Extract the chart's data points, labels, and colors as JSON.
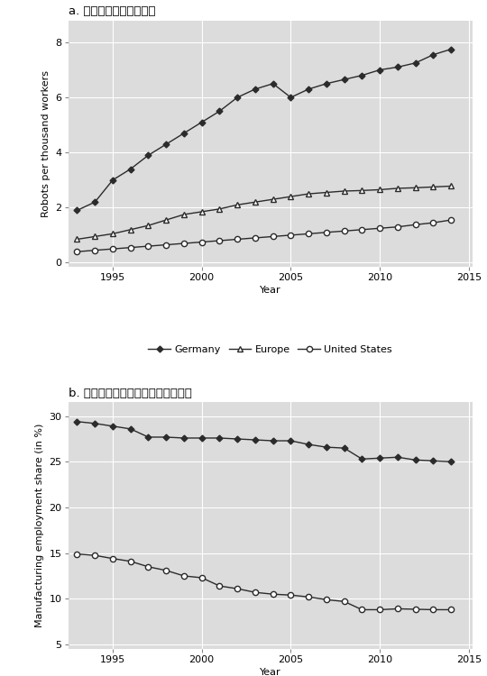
{
  "panel_a_title": "a. 産業用ロボットの台数",
  "panel_b_title": "b. 雇用全体に占める製造業のシェア",
  "xlabel": "Year",
  "panel_a_ylabel": "Robots per thousand workers",
  "panel_b_ylabel": "Manufacturing employment share (in %)",
  "bg_color": "#DCDCDC",
  "line_color": "#2b2b2b",
  "years_a": [
    1993,
    1994,
    1995,
    1996,
    1997,
    1998,
    1999,
    2000,
    2001,
    2002,
    2003,
    2004,
    2005,
    2006,
    2007,
    2008,
    2009,
    2010,
    2011,
    2012,
    2013,
    2014
  ],
  "germany_robots": [
    1.9,
    2.2,
    3.0,
    3.4,
    3.9,
    4.3,
    4.7,
    5.1,
    5.5,
    6.0,
    6.3,
    6.5,
    6.0,
    6.3,
    6.5,
    6.65,
    6.8,
    7.0,
    7.1,
    7.25,
    7.55,
    7.75
  ],
  "europe_robots": [
    0.85,
    0.95,
    1.05,
    1.2,
    1.35,
    1.55,
    1.75,
    1.85,
    1.95,
    2.1,
    2.2,
    2.3,
    2.4,
    2.5,
    2.55,
    2.6,
    2.62,
    2.65,
    2.7,
    2.72,
    2.75,
    2.78
  ],
  "us_robots": [
    0.4,
    0.45,
    0.5,
    0.55,
    0.6,
    0.65,
    0.7,
    0.75,
    0.8,
    0.85,
    0.9,
    0.95,
    1.0,
    1.05,
    1.1,
    1.15,
    1.2,
    1.25,
    1.3,
    1.38,
    1.45,
    1.55
  ],
  "years_b": [
    1993,
    1994,
    1995,
    1996,
    1997,
    1998,
    1999,
    2000,
    2001,
    2002,
    2003,
    2004,
    2005,
    2006,
    2007,
    2008,
    2009,
    2010,
    2011,
    2012,
    2013,
    2014
  ],
  "germany_mfg": [
    29.4,
    29.2,
    28.9,
    28.6,
    27.7,
    27.7,
    27.6,
    27.6,
    27.6,
    27.5,
    27.4,
    27.3,
    27.3,
    26.9,
    26.6,
    26.5,
    25.3,
    25.4,
    25.5,
    25.2,
    25.1,
    25.0
  ],
  "us_mfg": [
    14.9,
    14.75,
    14.4,
    14.1,
    13.5,
    13.1,
    12.5,
    12.3,
    11.4,
    11.1,
    10.7,
    10.5,
    10.4,
    10.2,
    9.9,
    9.7,
    8.8,
    8.8,
    8.9,
    8.85,
    8.8,
    8.8
  ],
  "xticks_a": [
    1995,
    2000,
    2005,
    2010,
    2015
  ],
  "yticks_a": [
    0,
    2,
    4,
    6,
    8
  ],
  "xlim_a": [
    1992.5,
    2015.2
  ],
  "ylim_a": [
    -0.15,
    8.8
  ],
  "xticks_b": [
    1995,
    2000,
    2005,
    2010,
    2015
  ],
  "yticks_b": [
    5,
    10,
    15,
    20,
    25,
    30
  ],
  "xlim_b": [
    1992.5,
    2015.2
  ],
  "ylim_b": [
    4.5,
    31.5
  ]
}
